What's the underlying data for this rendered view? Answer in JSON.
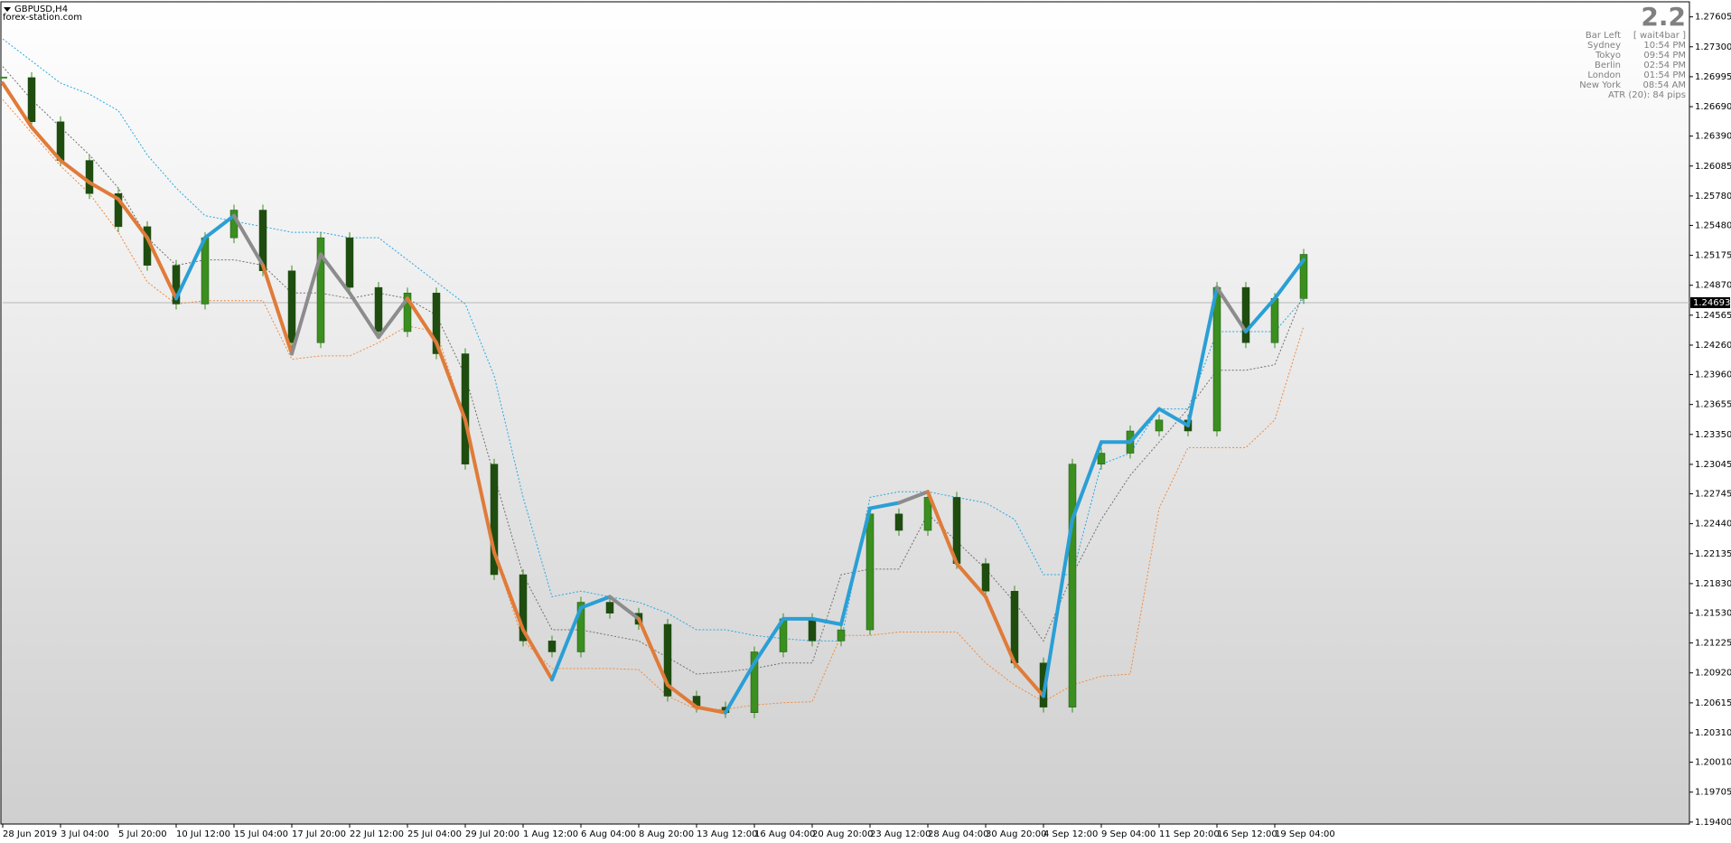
{
  "chart_data": {
    "type": "candlestick",
    "title": "GBPUSD,H4",
    "subtitle": "forex-station.com",
    "categories": [
      "28 Jun 2019",
      null,
      "3 Jul 04:00",
      null,
      "5 Jul 20:00",
      null,
      "10 Jul 12:00",
      null,
      "15 Jul 04:00",
      null,
      "17 Jul 20:00",
      null,
      "22 Jul 12:00",
      null,
      "25 Jul 04:00",
      null,
      "29 Jul 20:00",
      null,
      "1 Aug 12:00",
      null,
      "6 Aug 04:00",
      null,
      "8 Aug 20:00",
      null,
      "13 Aug 12:00",
      null,
      "16 Aug 04:00",
      null,
      "20 Aug 20:00",
      null,
      "23 Aug 12:00",
      null,
      "28 Aug 04:00",
      null,
      "30 Aug 20:00",
      null,
      "4 Sep 12:00",
      null,
      "9 Sep 04:00",
      null,
      "11 Sep 20:00",
      null,
      "16 Sep 12:00",
      null,
      "19 Sep 04:00",
      null
    ],
    "close": [
      1.26986,
      1.26536,
      1.26142,
      1.25804,
      1.25467,
      1.25073,
      1.24679,
      1.25354,
      1.25636,
      1.25017,
      1.24285,
      1.25354,
      1.24848,
      1.24398,
      1.24791,
      1.24172,
      1.23047,
      1.21921,
      1.21246,
      1.21134,
      1.2164,
      1.21528,
      1.21415,
      1.20683,
      1.20571,
      1.20515,
      1.21134,
      1.21471,
      1.21246,
      1.21359,
      1.2254,
      1.22372,
      1.22709,
      1.22034,
      1.21753,
      1.21021,
      1.20571,
      1.23047,
      1.23159,
      1.23385,
      1.23497,
      1.23385,
      1.24848,
      1.24285,
      1.24735,
      1.25185
    ],
    "candle_color": "#3a8f1f",
    "trend": {
      "values": [
        1.2693,
        1.2648,
        1.26142,
        1.25917,
        1.25748,
        1.25354,
        1.24735,
        1.25354,
        1.25579,
        1.25073,
        1.24172,
        1.25185,
        1.24791,
        1.24341,
        1.24735,
        1.24285,
        1.23497,
        1.22147,
        1.21359,
        1.20852,
        1.21584,
        1.21696,
        1.21471,
        1.20796,
        1.20571,
        1.20515,
        1.21021,
        1.21471,
        1.21471,
        1.21415,
        1.22597,
        1.22653,
        1.22766,
        1.22034,
        1.21696,
        1.21021,
        1.20683,
        1.22484,
        1.23272,
        1.23272,
        1.2361,
        1.23441,
        1.24848,
        1.24398,
        1.24735,
        1.25129
      ],
      "states": [
        "down",
        "down",
        "down",
        "down",
        "down",
        "down",
        "down",
        "up",
        "up",
        "flat",
        "down",
        "flat",
        "flat",
        "flat",
        "flat",
        "down",
        "down",
        "down",
        "down",
        "down",
        "up",
        "up",
        "flat",
        "down",
        "down",
        "down",
        "up",
        "up",
        "up",
        "up",
        "up",
        "up",
        "flat",
        "down",
        "down",
        "down",
        "down",
        "up",
        "up",
        "up",
        "up",
        "up",
        "up",
        "flat",
        "up",
        "up"
      ],
      "colors": {
        "up": "#2a9fd6",
        "down": "#e07b39",
        "flat": "#8c8c8c"
      }
    },
    "bands": [
      {
        "color": "#29a8e0",
        "values": [
          1.2738,
          1.27155,
          1.2693,
          1.26817,
          1.26649,
          1.26198,
          1.25861,
          1.25579,
          1.25523,
          1.25467,
          1.2541,
          1.2541,
          1.25354,
          1.25354,
          1.25129,
          1.24904,
          1.24679,
          1.23947,
          1.22709,
          1.21696,
          1.21753,
          1.21696,
          1.2164,
          1.21528,
          1.21359,
          1.21359,
          1.21302,
          1.21269,
          1.21246,
          1.21246,
          1.22709,
          1.22766,
          1.22766,
          1.22709,
          1.22653,
          1.22484,
          1.21921,
          1.21921,
          1.23047,
          1.23159,
          1.2361,
          1.2361,
          1.24398,
          1.24398,
          1.24398,
          1.24735
        ]
      },
      {
        "color": "#707070",
        "values": [
          1.27099,
          1.26761,
          1.2648,
          1.26198,
          1.25861,
          1.25354,
          1.25073,
          1.25129,
          1.25129,
          1.25073,
          1.24791,
          1.24791,
          1.24735,
          1.24791,
          1.24735,
          1.24566,
          1.23947,
          1.22934,
          1.21921,
          1.21359,
          1.21359,
          1.21302,
          1.21246,
          1.21077,
          1.20908,
          1.20931,
          1.20965,
          1.21021,
          1.21021,
          1.21921,
          1.21978,
          1.21978,
          1.2254,
          1.22259,
          1.21978,
          1.2164,
          1.21246,
          1.21921,
          1.22484,
          1.22934,
          1.23272,
          1.2361,
          1.24004,
          1.24004,
          1.2406,
          1.24791
        ]
      },
      {
        "color": "#f08a40",
        "values": [
          1.26761,
          1.26423,
          1.26086,
          1.25804,
          1.2541,
          1.24904,
          1.24679,
          1.24713,
          1.24713,
          1.24713,
          1.24116,
          1.2415,
          1.2415,
          1.24285,
          1.24454,
          1.24398,
          1.23497,
          1.22147,
          1.21246,
          1.20965,
          1.20965,
          1.20965,
          1.20953,
          1.20683,
          1.20548,
          1.20548,
          1.20593,
          1.20616,
          1.20627,
          1.21302,
          1.21302,
          1.21336,
          1.21336,
          1.21336,
          1.21021,
          1.20796,
          1.20627,
          1.20796,
          1.20886,
          1.20908,
          1.22597,
          1.23216,
          1.23216,
          1.23216,
          1.23497,
          1.24454
        ]
      }
    ],
    "last_price": 1.24693,
    "ylim": [
      1.1938,
      1.2774
    ],
    "yticks": [
      {
        "value": 1.27605,
        "label": "1.27605"
      },
      {
        "value": 1.273,
        "label": "1.27300"
      },
      {
        "value": 1.26995,
        "label": "1.26995"
      },
      {
        "value": 1.2669,
        "label": "1.26690"
      },
      {
        "value": 1.2639,
        "label": "1.26390"
      },
      {
        "value": 1.26085,
        "label": "1.26085"
      },
      {
        "value": 1.2578,
        "label": "1.25780"
      },
      {
        "value": 1.2548,
        "label": "1.25480"
      },
      {
        "value": 1.25175,
        "label": "1.25175"
      },
      {
        "value": 1.2487,
        "label": "1.24870"
      },
      {
        "value": 1.24565,
        "label": "1.24565"
      },
      {
        "value": 1.2426,
        "label": "1.24260"
      },
      {
        "value": 1.2396,
        "label": "1.23960"
      },
      {
        "value": 1.23655,
        "label": "1.23655"
      },
      {
        "value": 1.2335,
        "label": "1.23350"
      },
      {
        "value": 1.23045,
        "label": "1.23045"
      },
      {
        "value": 1.22745,
        "label": "1.22745"
      },
      {
        "value": 1.2244,
        "label": "1.22440"
      },
      {
        "value": 1.22135,
        "label": "1.22135"
      },
      {
        "value": 1.2183,
        "label": "1.21830"
      },
      {
        "value": 1.2153,
        "label": "1.21530"
      },
      {
        "value": 1.21225,
        "label": "1.21225"
      },
      {
        "value": 1.2092,
        "label": "1.20920"
      },
      {
        "value": 1.20615,
        "label": "1.20615"
      },
      {
        "value": 1.2031,
        "label": "1.20310"
      },
      {
        "value": 1.2001,
        "label": "1.20010"
      },
      {
        "value": 1.19705,
        "label": "1.19705"
      },
      {
        "value": 1.194,
        "label": "1.19400"
      }
    ],
    "info": {
      "headline": "2.2",
      "rows": [
        {
          "label": "Bar Left",
          "value": "[ wait4bar ]"
        },
        {
          "label": "Sydney",
          "value": "10:54 PM"
        },
        {
          "label": "Tokyo",
          "value": "09:54 PM"
        },
        {
          "label": "Berlin",
          "value": "02:54 PM"
        },
        {
          "label": "London",
          "value": "01:54 PM"
        },
        {
          "label": "New York",
          "value": "08:54 AM"
        }
      ],
      "atr": "ATR (20): 84 pips"
    }
  }
}
